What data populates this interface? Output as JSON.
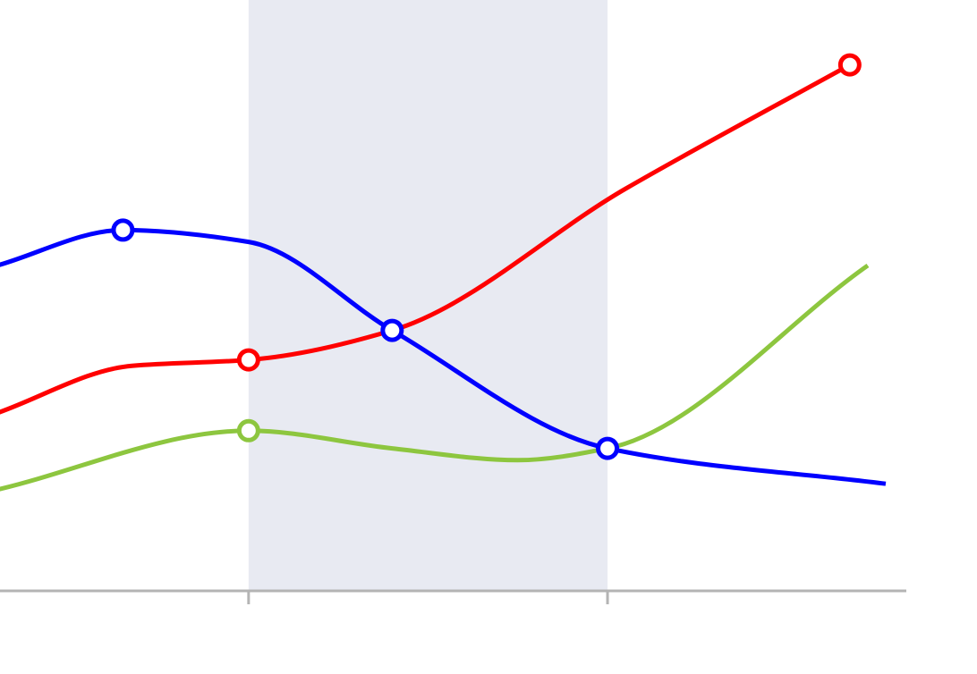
{
  "chart_data": {
    "type": "line",
    "title": "",
    "xlabel": "",
    "ylabel": "",
    "grid": false,
    "legend": "none",
    "tick_labels": [],
    "xlim": [
      0,
      100
    ],
    "ylim": [
      0,
      100
    ],
    "ticks": [
      28,
      68
    ],
    "highlight": {
      "from": 28,
      "to": 68,
      "color": "#e8eaf2"
    },
    "axis_color": "#b4b4b4",
    "series": [
      {
        "color": "#ff0000",
        "points": [
          [
            0,
            30
          ],
          [
            15,
            38
          ],
          [
            28,
            39
          ],
          [
            44,
            44
          ],
          [
            70,
            68
          ],
          [
            95,
            89
          ]
        ],
        "markers": [
          2,
          5
        ]
      },
      {
        "color": "#0000ff",
        "points": [
          [
            0,
            55
          ],
          [
            14,
            61
          ],
          [
            28,
            59
          ],
          [
            44,
            44
          ],
          [
            68,
            24
          ],
          [
            99,
            18
          ]
        ],
        "markers": [
          1,
          3,
          4
        ]
      },
      {
        "color": "#8dc63f",
        "points": [
          [
            0,
            17
          ],
          [
            28,
            27
          ],
          [
            44,
            24
          ],
          [
            58,
            22
          ],
          [
            68,
            24
          ],
          [
            97,
            55
          ]
        ],
        "markers": [
          1
        ]
      }
    ]
  }
}
